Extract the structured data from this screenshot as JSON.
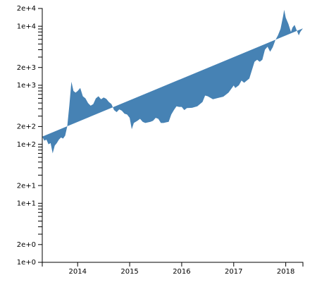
{
  "chart_data": {
    "type": "area",
    "color": "#4682b4",
    "log_y": true,
    "xlim": [
      2013.32,
      2018.33
    ],
    "xticks": [
      2014,
      2015,
      2016,
      2017,
      2018
    ],
    "ylim": [
      1,
      20000
    ],
    "yticks": [
      {
        "value": 1,
        "label": "1e+0"
      },
      {
        "value": 2,
        "label": "2e+0"
      },
      {
        "value": 10,
        "label": "1e+1"
      },
      {
        "value": 20,
        "label": "2e+1"
      },
      {
        "value": 100,
        "label": "1e+2"
      },
      {
        "value": 200,
        "label": "2e+2"
      },
      {
        "value": 1000,
        "label": "1e+3"
      },
      {
        "value": 2000,
        "label": "2e+3"
      },
      {
        "value": 10000,
        "label": "1e+4"
      },
      {
        "value": 20000,
        "label": "2e+4"
      }
    ],
    "yminorticks": [
      3,
      4,
      5,
      6,
      7,
      8,
      9,
      30,
      40,
      50,
      60,
      70,
      80,
      90,
      300,
      400,
      500,
      600,
      700,
      800,
      900,
      3000,
      4000,
      5000,
      6000,
      7000,
      8000,
      9000
    ],
    "x": [
      2013.32,
      2013.36,
      2013.4,
      2013.44,
      2013.48,
      2013.52,
      2013.56,
      2013.6,
      2013.64,
      2013.68,
      2013.72,
      2013.76,
      2013.8,
      2013.84,
      2013.88,
      2013.92,
      2013.96,
      2014.0,
      2014.05,
      2014.1,
      2014.15,
      2014.2,
      2014.25,
      2014.3,
      2014.35,
      2014.4,
      2014.45,
      2014.5,
      2014.55,
      2014.6,
      2014.65,
      2014.7,
      2014.75,
      2014.8,
      2014.85,
      2014.9,
      2014.95,
      2015.0,
      2015.04,
      2015.08,
      2015.15,
      2015.2,
      2015.25,
      2015.3,
      2015.4,
      2015.45,
      2015.5,
      2015.55,
      2015.6,
      2015.65,
      2015.7,
      2015.75,
      2015.8,
      2015.85,
      2015.9,
      2015.95,
      2016.0,
      2016.05,
      2016.1,
      2016.2,
      2016.3,
      2016.4,
      2016.45,
      2016.5,
      2016.6,
      2016.7,
      2016.8,
      2016.9,
      2017.0,
      2017.03,
      2017.1,
      2017.15,
      2017.2,
      2017.3,
      2017.35,
      2017.4,
      2017.45,
      2017.5,
      2017.55,
      2017.6,
      2017.65,
      2017.7,
      2017.75,
      2017.8,
      2017.85,
      2017.9,
      2017.95,
      2017.97,
      2018.0,
      2018.05,
      2018.1,
      2018.13,
      2018.17,
      2018.2,
      2018.25,
      2018.28,
      2018.33
    ],
    "values": [
      135,
      115,
      120,
      100,
      105,
      70,
      95,
      105,
      120,
      130,
      125,
      140,
      200,
      450,
      1150,
      800,
      750,
      800,
      900,
      650,
      600,
      500,
      450,
      480,
      600,
      650,
      580,
      620,
      590,
      520,
      480,
      380,
      350,
      390,
      370,
      330,
      320,
      280,
      180,
      230,
      250,
      270,
      240,
      230,
      240,
      250,
      280,
      270,
      230,
      230,
      235,
      240,
      320,
      380,
      440,
      430,
      430,
      380,
      410,
      415,
      440,
      520,
      670,
      650,
      580,
      610,
      640,
      750,
      990,
      900,
      1000,
      1200,
      1100,
      1300,
      1800,
      2500,
      2700,
      2500,
      2700,
      4000,
      4500,
      3700,
      4400,
      5800,
      7000,
      9000,
      15000,
      19000,
      14000,
      11000,
      8000,
      9500,
      10500,
      9000,
      7000,
      8000,
      9200
    ]
  }
}
